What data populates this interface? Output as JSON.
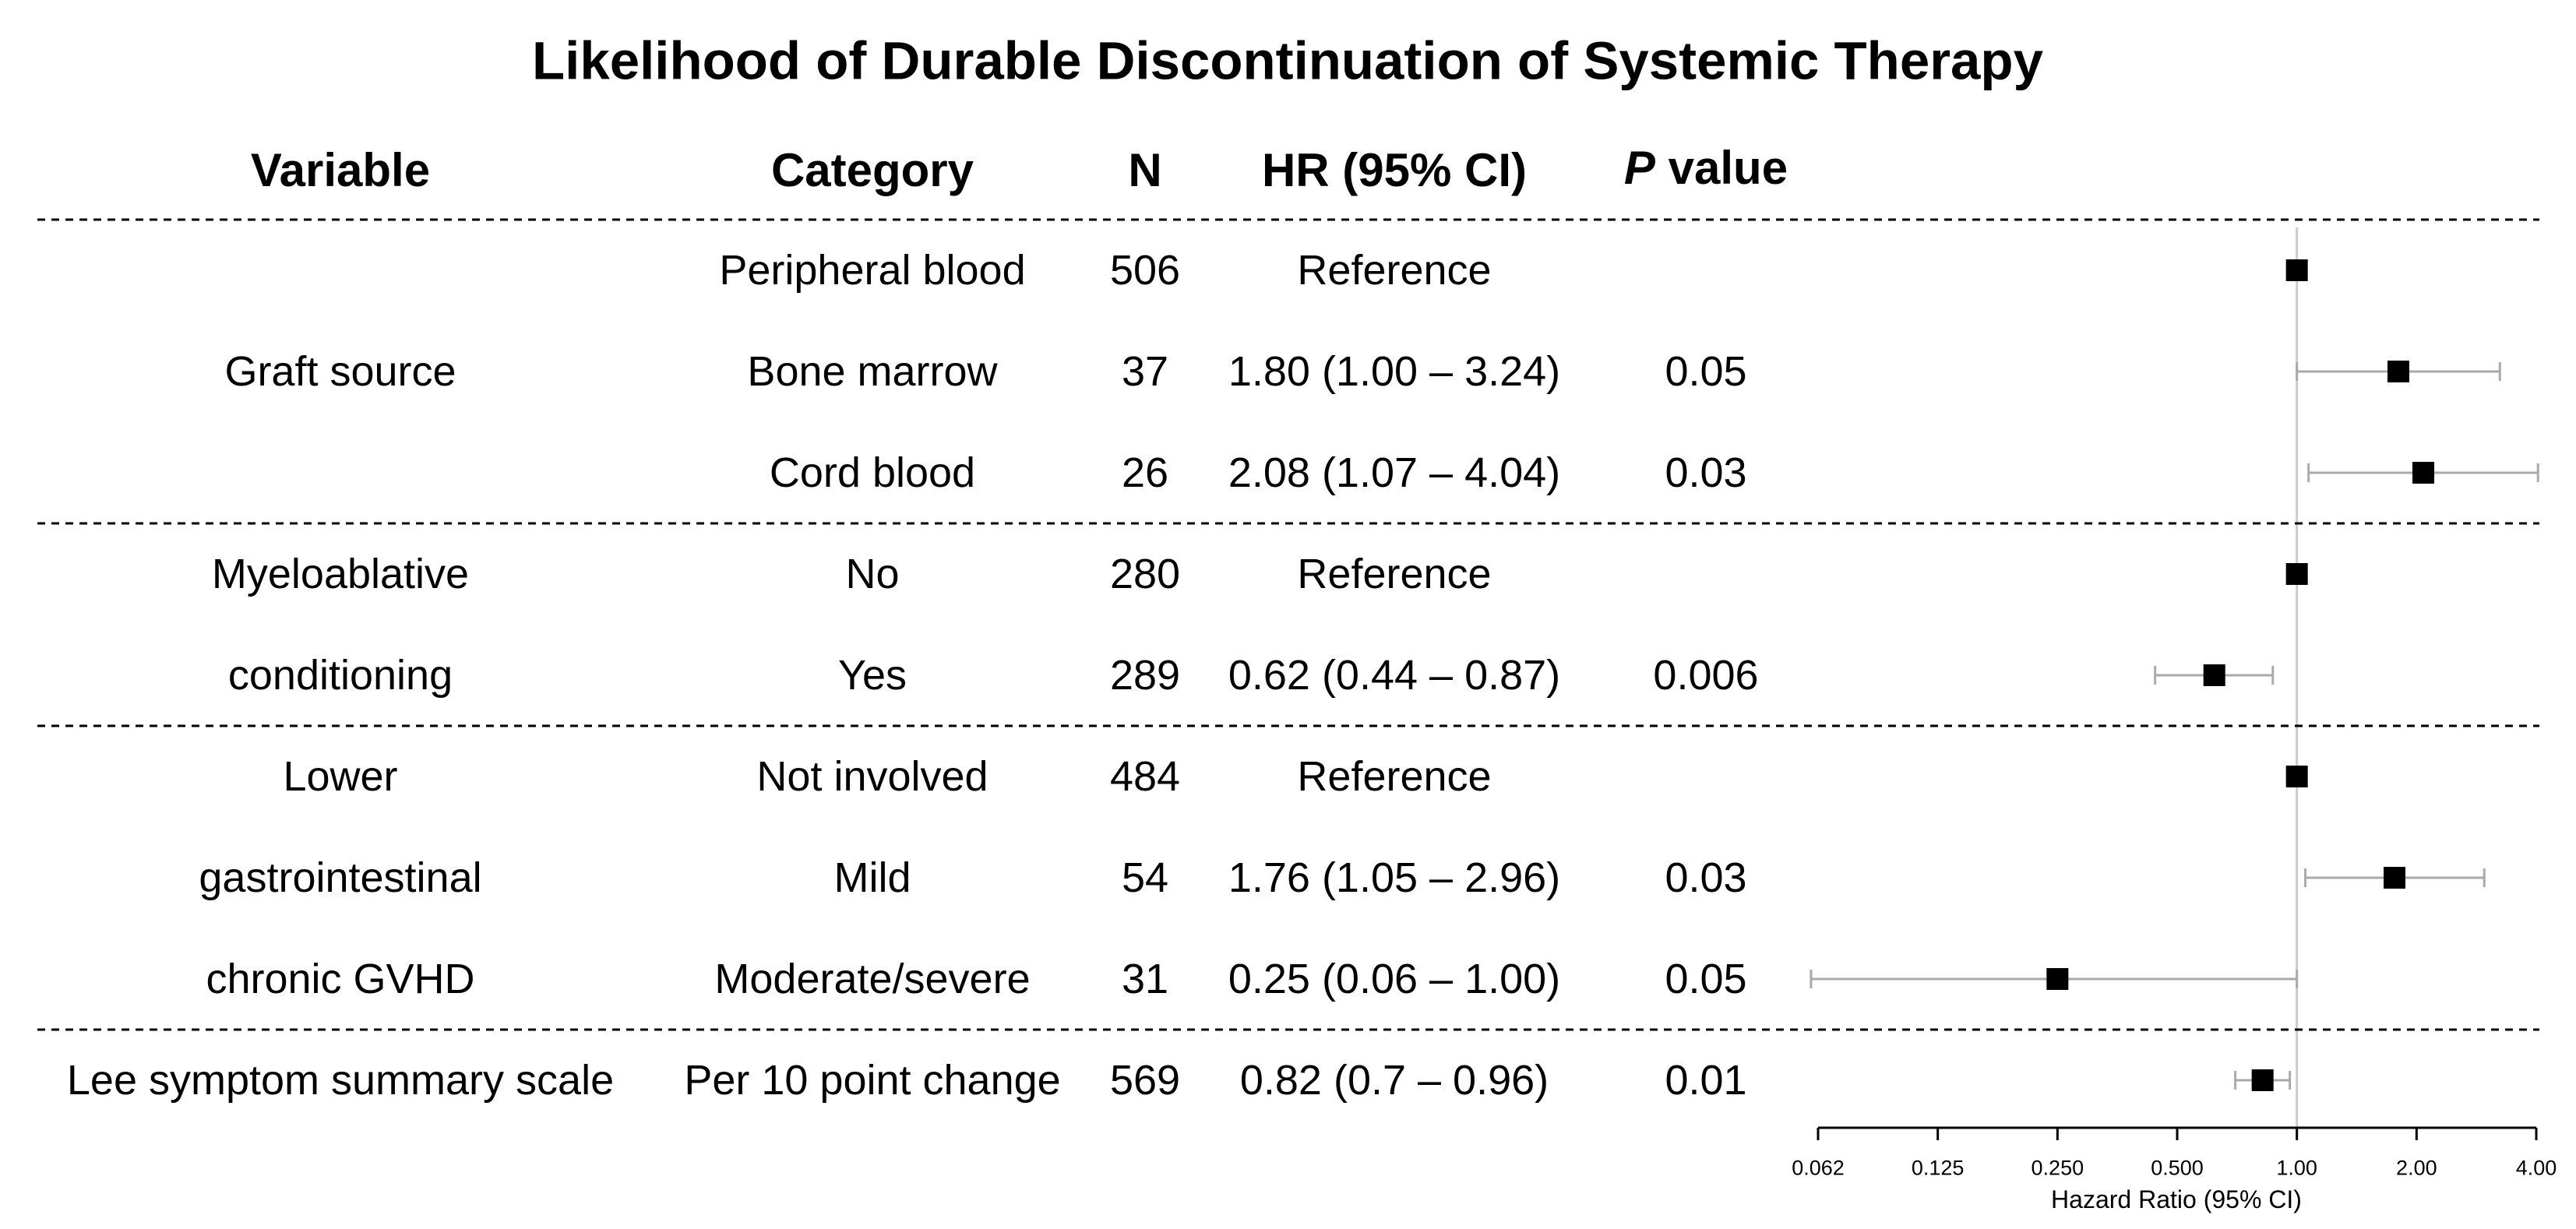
{
  "chart_data": {
    "type": "forest",
    "title": "Likelihood of Durable Discontinuation of Systemic Therapy",
    "columns": {
      "variable": "Variable",
      "category": "Category",
      "n": "N",
      "hr": "HR (95% CI)",
      "p_prefix": "P",
      "p_suffix": "value"
    },
    "groups": [
      {
        "labels": [
          "Graft source"
        ],
        "row_count": 3
      },
      {
        "labels": [
          "Myeloablative",
          "conditioning"
        ],
        "row_count": 2
      },
      {
        "labels": [
          "Lower",
          "gastrointestinal",
          "chronic GVHD"
        ],
        "row_count": 3
      },
      {
        "labels": [
          "Lee symptom summary scale"
        ],
        "row_count": 1
      }
    ],
    "rows": [
      {
        "category": "Peripheral blood",
        "n": "506",
        "hr_text": "Reference",
        "p": "",
        "hr": 1.0,
        "lower": null,
        "upper": null
      },
      {
        "category": "Bone marrow",
        "n": "37",
        "hr_text": "1.80 (1.00 – 3.24)",
        "p": "0.05",
        "hr": 1.8,
        "lower": 1.0,
        "upper": 3.24
      },
      {
        "category": "Cord blood",
        "n": "26",
        "hr_text": "2.08 (1.07 – 4.04)",
        "p": "0.03",
        "hr": 2.08,
        "lower": 1.07,
        "upper": 4.04
      },
      {
        "category": "No",
        "n": "280",
        "hr_text": "Reference",
        "p": "",
        "hr": 1.0,
        "lower": null,
        "upper": null
      },
      {
        "category": "Yes",
        "n": "289",
        "hr_text": "0.62 (0.44 – 0.87)",
        "p": "0.006",
        "hr": 0.62,
        "lower": 0.44,
        "upper": 0.87
      },
      {
        "category": "Not involved",
        "n": "484",
        "hr_text": "Reference",
        "p": "",
        "hr": 1.0,
        "lower": null,
        "upper": null
      },
      {
        "category": "Mild",
        "n": "54",
        "hr_text": "1.76 (1.05 – 2.96)",
        "p": "0.03",
        "hr": 1.76,
        "lower": 1.05,
        "upper": 2.96
      },
      {
        "category": "Moderate/severe",
        "n": "31",
        "hr_text": "0.25 (0.06 – 1.00)",
        "p": "0.05",
        "hr": 0.25,
        "lower": 0.06,
        "upper": 1.0
      },
      {
        "category": "Per 10 point change",
        "n": "569",
        "hr_text": "0.82 (0.7 – 0.96)",
        "p": "0.01",
        "hr": 0.82,
        "lower": 0.7,
        "upper": 0.96
      }
    ],
    "x_axis": {
      "label": "Hazard Ratio (95% CI)",
      "scale": "log2",
      "xlim": [
        0.0625,
        4.0
      ],
      "ticks": [
        0.0625,
        0.125,
        0.25,
        0.5,
        1.0,
        2.0,
        4.0
      ],
      "tick_labels": [
        "0.062",
        "0.125",
        "0.250",
        "0.500",
        "1.00",
        "2.00",
        "4.00"
      ],
      "reference_line": 1.0
    },
    "grid": false,
    "colors": {
      "marker": "#000000",
      "ci_line": "#aaaaaa",
      "reference_line": "#cccccc",
      "separator": "#000000"
    }
  }
}
